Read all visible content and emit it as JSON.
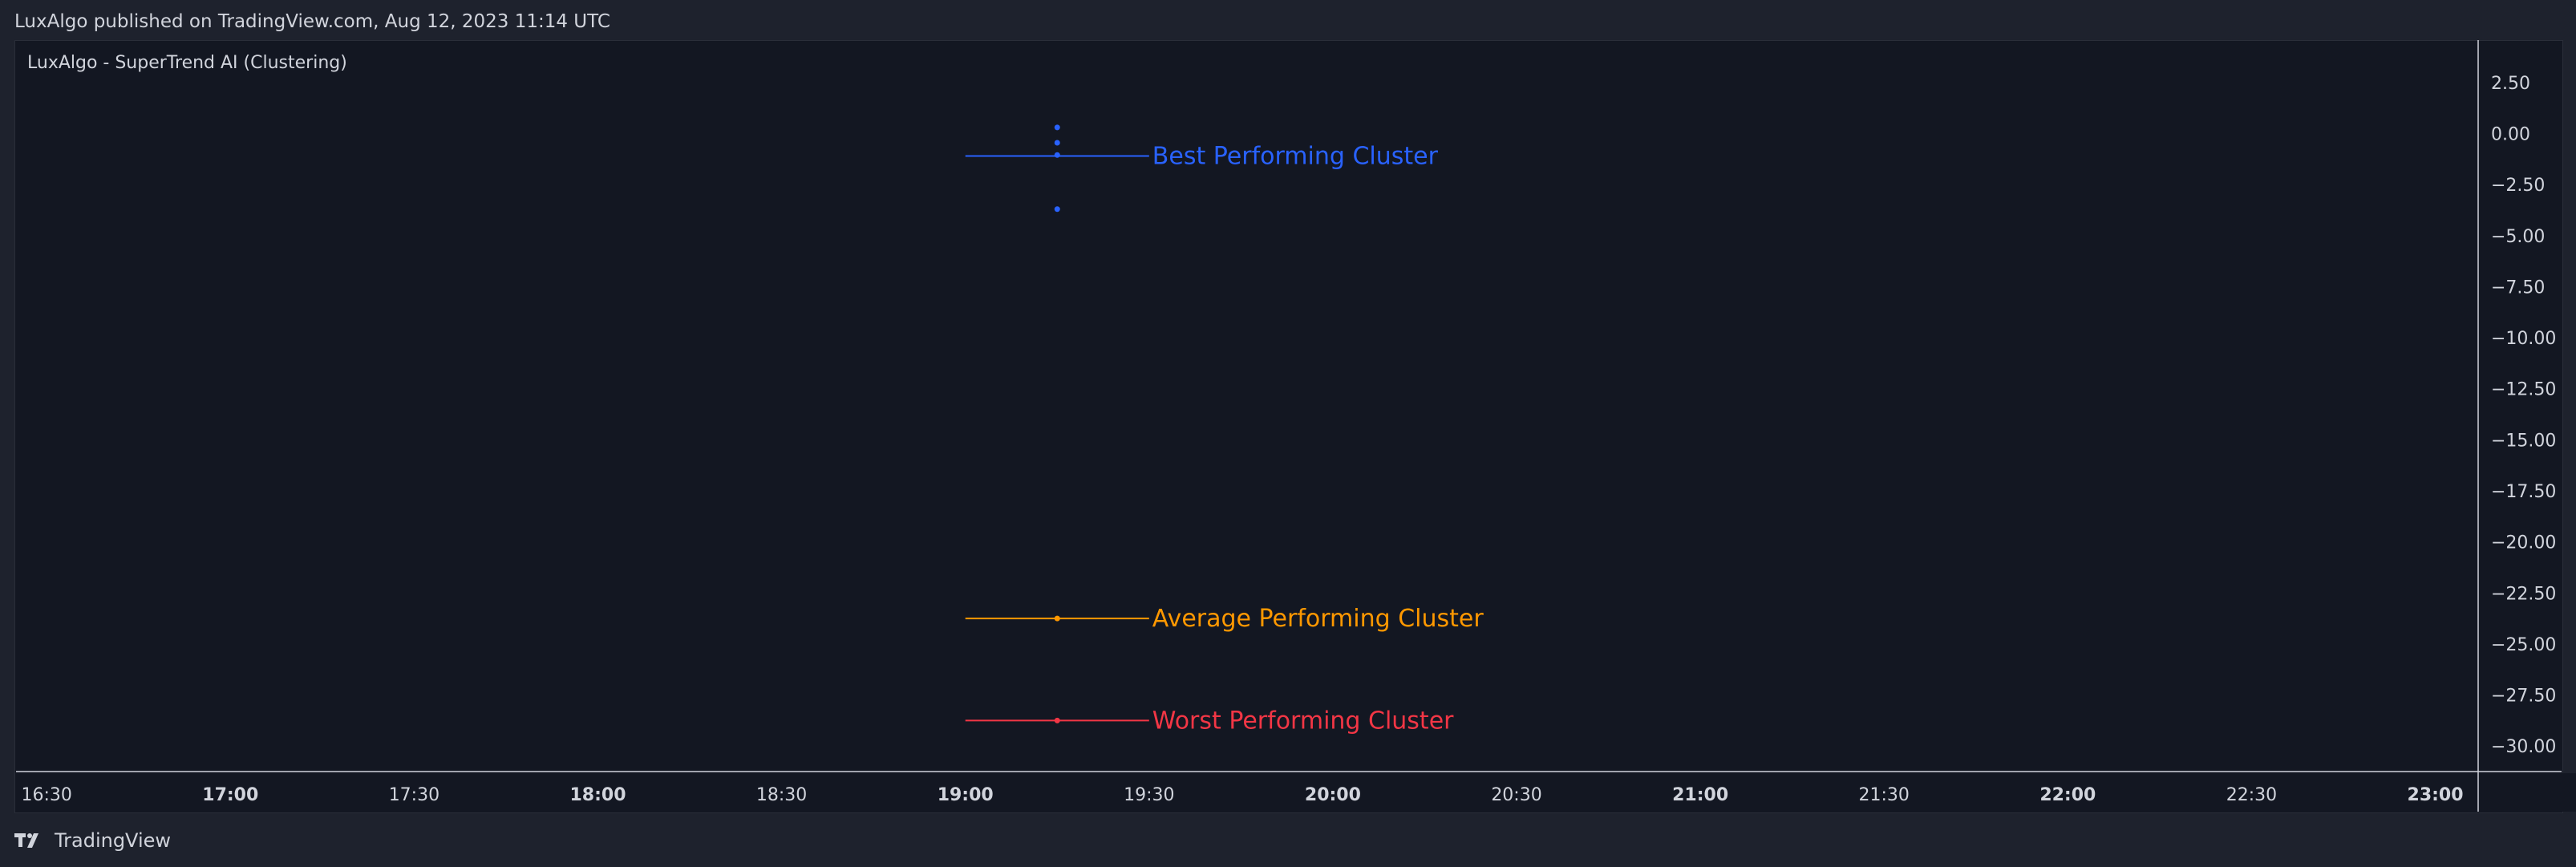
{
  "header": {
    "published": "LuxAlgo published on TradingView.com, Aug 12, 2023 11:14 UTC"
  },
  "indicator": {
    "title": "LuxAlgo - SuperTrend AI (Clustering)"
  },
  "footer": {
    "brand": "TradingView",
    "logo_icon": "tradingview-logo-icon"
  },
  "colors": {
    "background": "#131722",
    "page_background": "#1e222d",
    "text": "#d1d4dc",
    "axis_line": "#d1d4dc",
    "best": "#2962ff",
    "average": "#ff9800",
    "worst": "#f23645"
  },
  "chart_data": {
    "type": "scatter",
    "x_ticks": [
      {
        "label": "16:30",
        "bold": false
      },
      {
        "label": "17:00",
        "bold": true
      },
      {
        "label": "17:30",
        "bold": false
      },
      {
        "label": "18:00",
        "bold": true
      },
      {
        "label": "18:30",
        "bold": false
      },
      {
        "label": "19:00",
        "bold": true
      },
      {
        "label": "19:30",
        "bold": false
      },
      {
        "label": "20:00",
        "bold": true
      },
      {
        "label": "20:30",
        "bold": false
      },
      {
        "label": "21:00",
        "bold": true
      },
      {
        "label": "21:30",
        "bold": false
      },
      {
        "label": "22:00",
        "bold": true
      },
      {
        "label": "22:30",
        "bold": false
      },
      {
        "label": "23:00",
        "bold": true
      }
    ],
    "y_ticks": [
      2.5,
      0,
      -2.5,
      -5,
      -7.5,
      -10,
      -12.5,
      -15,
      -17.5,
      -20,
      -22.5,
      -25,
      -27.5,
      -30
    ],
    "y_tick_labels": [
      "2.50",
      "0.00",
      "−2.50",
      "−5.00",
      "−7.50",
      "−10.00",
      "−12.50",
      "−15.00",
      "−17.50",
      "−20.00",
      "−22.50",
      "−25.00",
      "−27.50",
      "−30.00"
    ],
    "ylim": [
      -31.25,
      4.5
    ],
    "xlim_minutes": [
      985,
      1387
    ],
    "series": [
      {
        "name": "Best Performing Cluster",
        "color": "#2962ff",
        "x_time": "19:15",
        "points": [
          0.3,
          -0.45,
          -1.05,
          -3.7
        ],
        "line_value": -1.1,
        "line_from": "19:00",
        "line_to": "19:30"
      },
      {
        "name": "Average Performing Cluster",
        "color": "#ff9800",
        "x_time": "19:15",
        "points": [
          -23.75
        ],
        "line_value": -23.75,
        "line_from": "19:00",
        "line_to": "19:30"
      },
      {
        "name": "Worst Performing Cluster",
        "color": "#f23645",
        "x_time": "19:15",
        "points": [
          -28.75
        ],
        "line_value": -28.75,
        "line_from": "19:00",
        "line_to": "19:30"
      }
    ]
  }
}
